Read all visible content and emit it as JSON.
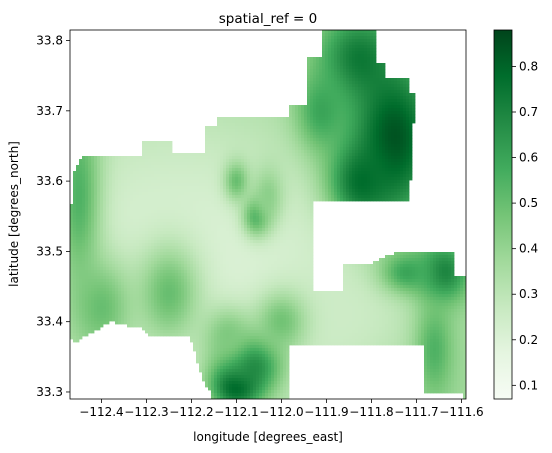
{
  "chart_data": {
    "type": "heatmap",
    "title": "spatial_ref = 0",
    "xlabel": "longitude [degrees_east]",
    "ylabel": "latitude [degrees_north]",
    "xlim": [
      -112.47,
      -111.59
    ],
    "ylim": [
      33.29,
      33.815
    ],
    "x_ticks": [
      -112.4,
      -112.3,
      -112.2,
      -112.1,
      -112.0,
      -111.9,
      -111.8,
      -111.7,
      -111.6
    ],
    "x_tick_labels": [
      "−112.4",
      "−112.3",
      "−112.2",
      "−112.1",
      "−112.0",
      "−111.9",
      "−111.8",
      "−111.7",
      "−111.6"
    ],
    "y_ticks": [
      33.3,
      33.4,
      33.5,
      33.6,
      33.7,
      33.8
    ],
    "y_tick_labels": [
      "33.3",
      "33.4",
      "33.5",
      "33.6",
      "33.7",
      "33.8"
    ],
    "colorbar": {
      "colormap": "Greens",
      "range": [
        0.07,
        0.88
      ],
      "ticks": [
        0.1,
        0.2,
        0.3,
        0.4,
        0.5,
        0.6,
        0.7,
        0.8
      ],
      "tick_labels": [
        "0.1",
        "0.2",
        "0.3",
        "0.4",
        "0.5",
        "0.6",
        "0.7",
        "0.8"
      ]
    },
    "colormap_stops": [
      "#f7fcf5",
      "#e5f5e0",
      "#c7e9c0",
      "#a1d99b",
      "#74c476",
      "#41ab5d",
      "#238b45",
      "#006d2c",
      "#00441b"
    ],
    "region_outline": [
      [
        -112.47,
        33.48
      ],
      [
        -112.465,
        33.61
      ],
      [
        -112.44,
        33.637
      ],
      [
        -112.31,
        33.637
      ],
      [
        -112.31,
        33.655
      ],
      [
        -112.245,
        33.655
      ],
      [
        -112.245,
        33.64
      ],
      [
        -112.168,
        33.64
      ],
      [
        -112.168,
        33.68
      ],
      [
        -112.145,
        33.68
      ],
      [
        -112.145,
        33.692
      ],
      [
        -111.985,
        33.692
      ],
      [
        -111.985,
        33.707
      ],
      [
        -111.942,
        33.707
      ],
      [
        -111.942,
        33.778
      ],
      [
        -111.908,
        33.778
      ],
      [
        -111.908,
        33.815
      ],
      [
        -111.79,
        33.815
      ],
      [
        -111.79,
        33.768
      ],
      [
        -111.768,
        33.768
      ],
      [
        -111.768,
        33.745
      ],
      [
        -111.718,
        33.745
      ],
      [
        -111.718,
        33.725
      ],
      [
        -111.7,
        33.725
      ],
      [
        -111.7,
        33.69
      ],
      [
        -111.706,
        33.69
      ],
      [
        -111.716,
        33.57
      ],
      [
        -111.93,
        33.57
      ],
      [
        -111.93,
        33.445
      ],
      [
        -111.86,
        33.445
      ],
      [
        -111.86,
        33.48
      ],
      [
        -111.815,
        33.48
      ],
      [
        -111.74,
        33.5
      ],
      [
        -111.615,
        33.5
      ],
      [
        -111.615,
        33.465
      ],
      [
        -111.59,
        33.465
      ],
      [
        -111.59,
        33.29
      ],
      [
        -111.6,
        33.292
      ],
      [
        -111.6,
        33.298
      ],
      [
        -111.68,
        33.298
      ],
      [
        -111.685,
        33.365
      ],
      [
        -111.985,
        33.365
      ],
      [
        -111.985,
        33.29
      ],
      [
        -112.155,
        33.29
      ],
      [
        -112.155,
        33.3
      ],
      [
        -112.17,
        33.31
      ],
      [
        -112.205,
        33.38
      ],
      [
        -112.29,
        33.38
      ],
      [
        -112.31,
        33.39
      ],
      [
        -112.38,
        33.4
      ],
      [
        -112.46,
        33.37
      ],
      [
        -112.47,
        33.375
      ]
    ],
    "field_components": [
      {
        "lon": -112.28,
        "lat": 33.5,
        "sx": 0.25,
        "sy": 0.15,
        "value": 0.22
      },
      {
        "lon": -112.08,
        "lat": 33.45,
        "sx": 0.2,
        "sy": 0.12,
        "value": 0.2
      },
      {
        "lon": -111.88,
        "lat": 33.42,
        "sx": 0.12,
        "sy": 0.06,
        "value": 0.25
      },
      {
        "lon": -112.45,
        "lat": 33.58,
        "sx": 0.035,
        "sy": 0.1,
        "value": 0.55
      },
      {
        "lon": -112.4,
        "lat": 33.42,
        "sx": 0.05,
        "sy": 0.05,
        "value": 0.5
      },
      {
        "lon": -112.25,
        "lat": 33.44,
        "sx": 0.05,
        "sy": 0.05,
        "value": 0.5
      },
      {
        "lon": -112.055,
        "lat": 33.55,
        "sx": 0.022,
        "sy": 0.02,
        "value": 0.58
      },
      {
        "lon": -112.1,
        "lat": 33.6,
        "sx": 0.02,
        "sy": 0.02,
        "value": 0.5
      },
      {
        "lon": -112.03,
        "lat": 33.58,
        "sx": 0.025,
        "sy": 0.03,
        "value": 0.42
      },
      {
        "lon": -111.83,
        "lat": 33.775,
        "sx": 0.06,
        "sy": 0.045,
        "value": 0.72
      },
      {
        "lon": -111.75,
        "lat": 33.66,
        "sx": 0.07,
        "sy": 0.08,
        "value": 0.85
      },
      {
        "lon": -111.82,
        "lat": 33.6,
        "sx": 0.05,
        "sy": 0.04,
        "value": 0.78
      },
      {
        "lon": -111.91,
        "lat": 33.7,
        "sx": 0.04,
        "sy": 0.04,
        "value": 0.6
      },
      {
        "lon": -111.64,
        "lat": 33.47,
        "sx": 0.04,
        "sy": 0.03,
        "value": 0.72
      },
      {
        "lon": -111.72,
        "lat": 33.47,
        "sx": 0.04,
        "sy": 0.02,
        "value": 0.6
      },
      {
        "lon": -111.66,
        "lat": 33.36,
        "sx": 0.03,
        "sy": 0.05,
        "value": 0.55
      },
      {
        "lon": -112.1,
        "lat": 33.31,
        "sx": 0.04,
        "sy": 0.025,
        "value": 0.86
      },
      {
        "lon": -112.07,
        "lat": 33.34,
        "sx": 0.05,
        "sy": 0.03,
        "value": 0.72
      },
      {
        "lon": -112.0,
        "lat": 33.4,
        "sx": 0.04,
        "sy": 0.03,
        "value": 0.48
      },
      {
        "lon": -112.12,
        "lat": 33.38,
        "sx": 0.04,
        "sy": 0.03,
        "value": 0.45
      }
    ],
    "field_base_value": 0.38
  }
}
